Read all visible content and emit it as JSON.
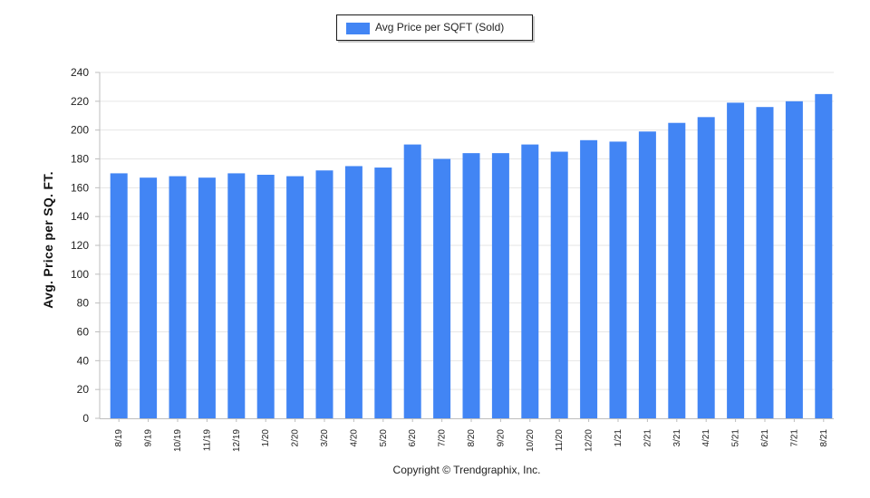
{
  "legend": {
    "label": "Avg Price per SQFT (Sold)"
  },
  "footer": {
    "copyright": "Copyright © Trendgraphix, Inc."
  },
  "colors": {
    "bar": "#4285f4",
    "grid": "#e6e6e6",
    "axis": "#bdbdbd"
  },
  "chart_data": {
    "type": "bar",
    "title": "",
    "xlabel": "",
    "ylabel": "Avg. Price per SQ. FT.",
    "ylim": [
      0,
      240
    ],
    "yticks": [
      0,
      20,
      40,
      60,
      80,
      100,
      120,
      140,
      160,
      180,
      200,
      220,
      240
    ],
    "grid": true,
    "legend_position": "top-center",
    "categories": [
      "8/19",
      "9/19",
      "10/19",
      "11/19",
      "12/19",
      "1/20",
      "2/20",
      "3/20",
      "4/20",
      "5/20",
      "6/20",
      "7/20",
      "8/20",
      "9/20",
      "10/20",
      "11/20",
      "12/20",
      "1/21",
      "2/21",
      "3/21",
      "4/21",
      "5/21",
      "6/21",
      "7/21",
      "8/21"
    ],
    "series": [
      {
        "name": "Avg Price per SQFT (Sold)",
        "values": [
          170,
          167,
          168,
          167,
          170,
          169,
          168,
          172,
          175,
          174,
          190,
          180,
          184,
          184,
          190,
          185,
          193,
          192,
          199,
          205,
          209,
          219,
          216,
          220,
          225
        ]
      }
    ]
  }
}
